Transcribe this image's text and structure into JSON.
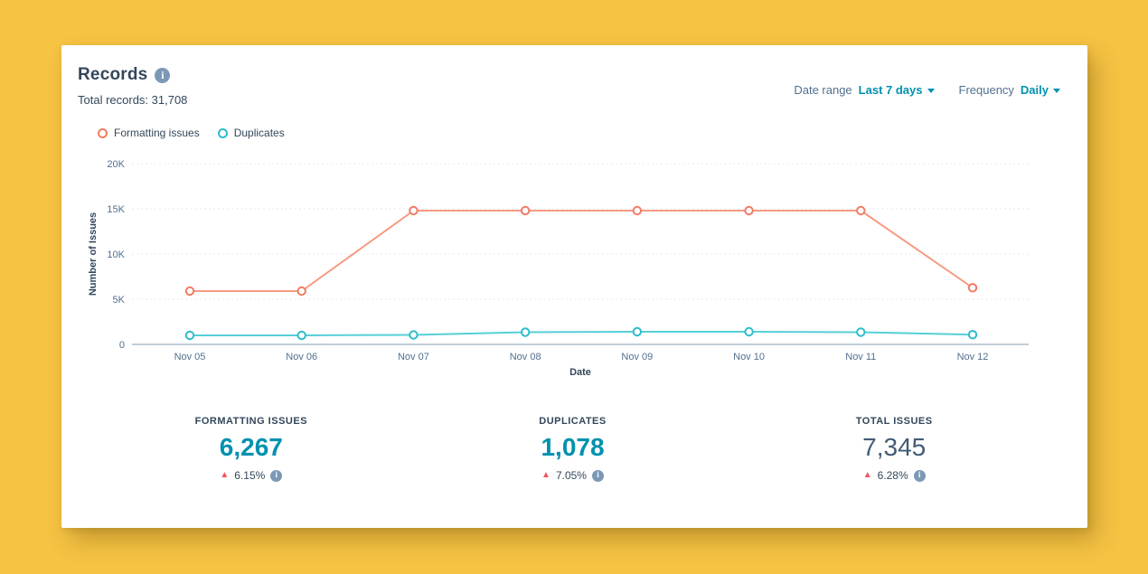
{
  "window": {
    "background_color": "#f6c343"
  },
  "panel": {
    "title": "Records",
    "total_records_label": "Total records: 31,708",
    "controls": {
      "date_range_label": "Date range",
      "date_range_value": "Last 7 days",
      "frequency_label": "Frequency",
      "frequency_value": "Daily"
    }
  },
  "legend": {
    "items": [
      {
        "label": "Formatting issues",
        "color": "#f07c63"
      },
      {
        "label": "Duplicates",
        "color": "#2fbccb"
      }
    ]
  },
  "chart_data": {
    "type": "line",
    "title": "",
    "x": [
      "Nov 05",
      "Nov 06",
      "Nov 07",
      "Nov 08",
      "Nov 09",
      "Nov 10",
      "Nov 11",
      "Nov 12"
    ],
    "series": [
      {
        "name": "Formatting issues",
        "line_color": "#f79b82",
        "marker_color": "#f07c63",
        "values": [
          5900,
          5900,
          14800,
          14800,
          14800,
          14800,
          14800,
          6267
        ]
      },
      {
        "name": "Duplicates",
        "line_color": "#55d0d6",
        "marker_color": "#2fbccb",
        "values": [
          1000,
          1000,
          1050,
          1350,
          1400,
          1400,
          1350,
          1078
        ]
      }
    ],
    "xlabel": "Date",
    "ylabel": "Number of Issues",
    "ylim": [
      0,
      20000
    ],
    "yticks": [
      {
        "value": 0,
        "label": "0"
      },
      {
        "value": 5000,
        "label": "5K"
      },
      {
        "value": 10000,
        "label": "10K"
      },
      {
        "value": 15000,
        "label": "15K"
      },
      {
        "value": 20000,
        "label": "20K"
      }
    ],
    "grid": "horizontal dashed",
    "legend_position": "top-left",
    "markers": "open-circle"
  },
  "stats": [
    {
      "label": "FORMATTING ISSUES",
      "value": "6,267",
      "value_color": "#0091ae",
      "value_weight": "700",
      "change": "6.15%",
      "direction": "up",
      "change_color": "#f2545b"
    },
    {
      "label": "DUPLICATES",
      "value": "1,078",
      "value_color": "#0091ae",
      "value_weight": "700",
      "change": "7.05%",
      "direction": "up",
      "change_color": "#f2545b"
    },
    {
      "label": "TOTAL ISSUES",
      "value": "7,345",
      "value_color": "#425b76",
      "value_weight": "500",
      "change": "6.28%",
      "direction": "up",
      "change_color": "#f2545b"
    }
  ]
}
